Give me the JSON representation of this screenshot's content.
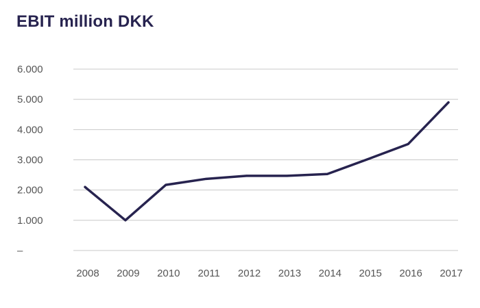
{
  "chart_data": {
    "type": "line",
    "title": "EBIT million DKK",
    "xlabel": "",
    "ylabel": "",
    "x": [
      "2008",
      "2009",
      "2010",
      "2011",
      "2012",
      "2013",
      "2014",
      "2015",
      "2016",
      "2017"
    ],
    "series": [
      {
        "values": [
          2100,
          1000,
          2170,
          2370,
          2470,
          2470,
          2530,
          3020,
          3520,
          4900
        ],
        "color": "#27234f"
      }
    ],
    "ylim": [
      0,
      6000
    ],
    "yticks": [
      0,
      1000,
      2000,
      3000,
      4000,
      5000,
      6000
    ],
    "ytick_labels": [
      "–",
      "1.000",
      "2.000",
      "3.000",
      "4.000",
      "5.000",
      "6.000"
    ],
    "grid": true,
    "legend": "none"
  }
}
